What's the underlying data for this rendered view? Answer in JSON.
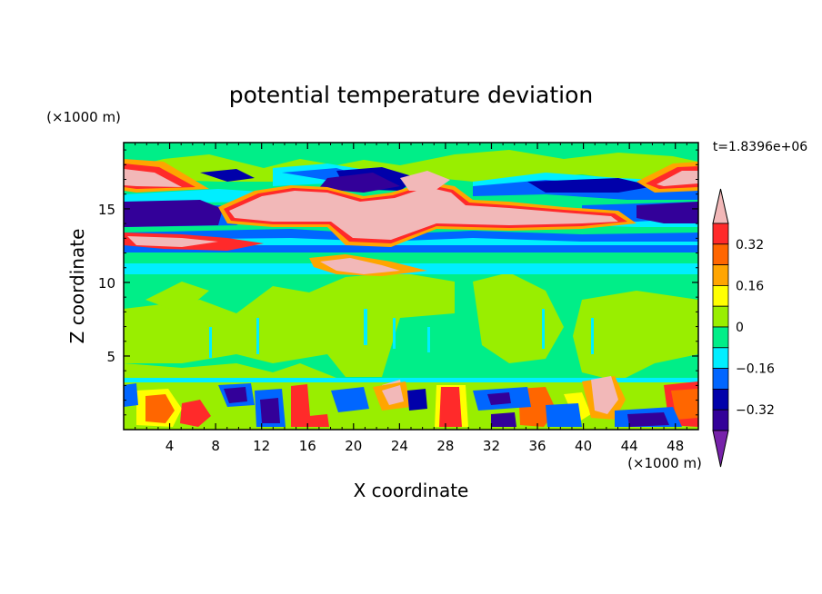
{
  "chart_data": {
    "type": "heatmap",
    "title": "potential temperature deviation",
    "xlabel": "X coordinate",
    "ylabel": "Z coordinate",
    "x_unit": "(×1000 m)",
    "y_unit": "(×1000 m)",
    "time_label": "t=1.8396e+06",
    "xlim": [
      0,
      50
    ],
    "ylim": [
      0,
      19.5
    ],
    "x_ticks": [
      "4",
      "8",
      "12",
      "16",
      "20",
      "24",
      "28",
      "32",
      "36",
      "40",
      "44",
      "48"
    ],
    "y_ticks": [
      "5",
      "10",
      "15"
    ],
    "colorbar": {
      "tick_labels": [
        "0.32",
        "0.16",
        "0",
        "−0.16",
        "−0.32"
      ],
      "tick_values": [
        0.32,
        0.16,
        0,
        -0.16,
        -0.32
      ],
      "colors": [
        "#f2b8b8",
        "#ff2a2a",
        "#ff6600",
        "#ffa500",
        "#ffff00",
        "#99ee00",
        "#00ee88",
        "#00eeff",
        "#0066ff",
        "#0000aa",
        "#330099",
        "#7722aa"
      ],
      "extend": "both"
    },
    "bands": [
      {
        "z_range": [
          19.5,
          17.0
        ],
        "description": "mostly near-zero / slightly negative, pink lobes at x≈0-4 and x≈46-50"
      },
      {
        "z_range": [
          17.0,
          14.5
        ],
        "description": "strong positive (pink) plume x≈10-41 above strong negative (purple) band"
      },
      {
        "z_range": [
          14.0,
          12.0
        ],
        "description": "alternating positive (red/pink) and negative (blue) layers"
      },
      {
        "z_range": [
          12.0,
          10.5
        ],
        "description": "cyan negative layer with pink patches near x≈17-26"
      },
      {
        "z_range": [
          10.5,
          3.5
        ],
        "description": "near-zero mixture of green (slightly negative) and yellow-green (slightly positive)"
      },
      {
        "z_range": [
          3.5,
          0.0
        ],
        "description": "boundary layer turbulence: alternating strong positive and negative cells"
      }
    ]
  }
}
